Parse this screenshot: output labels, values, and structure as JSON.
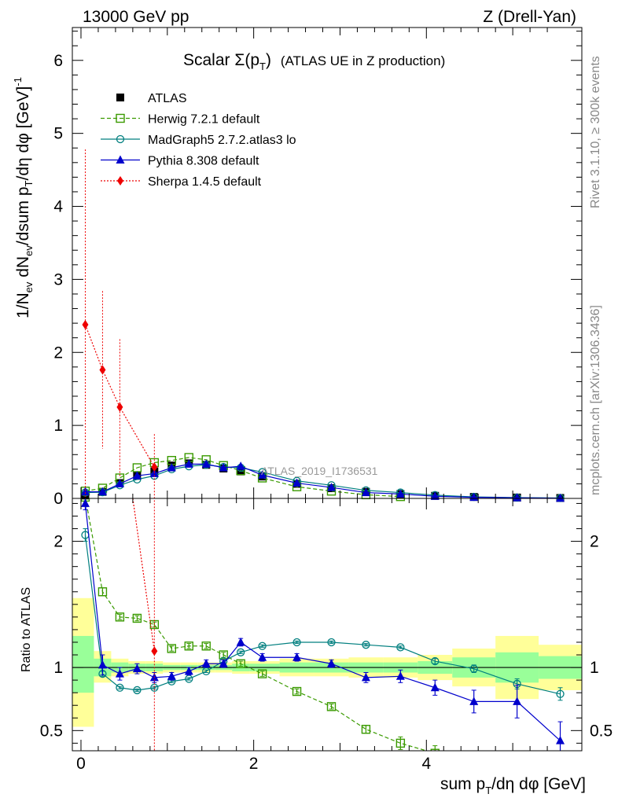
{
  "header": {
    "left": "13000 GeV pp",
    "right": "Z (Drell-Yan)"
  },
  "side_labels": {
    "rivet": "Rivet 3.1.10, ≥ 300k events",
    "mcplots": "mcplots.cern.ch [arXiv:1306.3436]"
  },
  "colors": {
    "atlas": "#000000",
    "herwig": "#3a9a00",
    "madgraph": "#007f7f",
    "pythia": "#0000cc",
    "sherpa": "#ee0000",
    "band_yellow": "#ffff99",
    "band_green": "#99ff99"
  },
  "chart_data": [
    {
      "type": "scatter",
      "title_main": "Scalar Σ(p",
      "title_sub": "T",
      "title_close": ")",
      "title_extra": "(ATLAS UE in Z production)",
      "watermark": "ATLAS_2019_I1736531",
      "ylabel": "1/N_ev dN_ev/dsum p_T/dη dφ [GeV]^-1",
      "ylabel_parts": {
        "a": "1/N",
        "b": "ev",
        "c": " dN",
        "d": "ev",
        "e": "/dsum p",
        "f": "T",
        "g": "/dη dφ  [GeV]",
        "h": "-1"
      },
      "xlim": [
        -0.1,
        5.8
      ],
      "ylim": [
        0,
        6.45
      ],
      "yticks": [
        0,
        1,
        2,
        3,
        4,
        5,
        6
      ],
      "ytick_labels": [
        "0",
        "1",
        "2",
        "3",
        "4",
        "5",
        "6"
      ],
      "x": [
        0.05,
        0.25,
        0.45,
        0.65,
        0.85,
        1.05,
        1.25,
        1.45,
        1.65,
        1.85,
        2.1,
        2.5,
        2.9,
        3.3,
        3.7,
        4.1,
        4.55,
        5.05,
        5.55
      ],
      "legend": [
        "ATLAS",
        "Herwig 7.2.1 default",
        "MadGraph5 2.7.2.atlas3 lo",
        "Pythia 8.308 default",
        "Sherpa 1.4.5 default"
      ],
      "series": [
        {
          "name": "ATLAS",
          "key": "atlas",
          "marker": "square-filled",
          "values": [
            0.04,
            0.09,
            0.21,
            0.31,
            0.37,
            0.45,
            0.48,
            0.46,
            0.41,
            0.37,
            0.3,
            0.2,
            0.14,
            0.09,
            0.06,
            0.035,
            0.02,
            0.012,
            0.006
          ]
        },
        {
          "name": "Herwig 7.2.1 default",
          "key": "herwig",
          "marker": "square-open",
          "dash": "5,3",
          "values": [
            0.1,
            0.14,
            0.28,
            0.42,
            0.49,
            0.52,
            0.56,
            0.53,
            0.45,
            0.38,
            0.28,
            0.16,
            0.1,
            0.05,
            0.025
          ]
        },
        {
          "name": "MadGraph5 2.7.2.atlas3 lo",
          "key": "madgraph",
          "marker": "circle-open",
          "values": [
            0.08,
            0.085,
            0.18,
            0.26,
            0.31,
            0.4,
            0.44,
            0.46,
            0.43,
            0.42,
            0.36,
            0.24,
            0.18,
            0.11,
            0.08,
            0.045,
            0.02,
            0.011,
            0.005
          ]
        },
        {
          "name": "Pythia 8.308 default",
          "key": "pythia",
          "marker": "triangle-filled",
          "values": [
            0.09,
            0.09,
            0.2,
            0.31,
            0.34,
            0.42,
            0.47,
            0.47,
            0.42,
            0.44,
            0.32,
            0.21,
            0.15,
            0.08,
            0.06,
            0.03,
            0.015,
            0.009,
            0.0025
          ]
        },
        {
          "name": "Sherpa 1.4.5 default",
          "key": "sherpa",
          "marker": "diamond-filled",
          "dash": "2,2",
          "x_override": [
            0.05,
            0.25,
            0.45,
            0.85
          ],
          "values": [
            2.38,
            1.76,
            1.25,
            0.43
          ],
          "err_up": [
            4.78,
            2.84,
            2.18,
            0.88
          ],
          "err_down": [
            0.0,
            0.68,
            0.3,
            0.0
          ]
        }
      ]
    },
    {
      "type": "line",
      "ylabel": "Ratio to ATLAS",
      "xlabel_parts": {
        "a": "sum p",
        "b": "T",
        "c": "/dη dφ [GeV]"
      },
      "xlim": [
        -0.1,
        5.8
      ],
      "ylim": [
        0.34,
        2.34
      ],
      "yticks": [
        0.5,
        1,
        2
      ],
      "ytick_labels": [
        "0.5",
        "1",
        "2"
      ],
      "xticks": [
        0,
        2,
        4
      ],
      "xtick_labels": [
        "0",
        "2",
        "4"
      ],
      "bands": {
        "edges": [
          -0.1,
          0.15,
          0.35,
          0.55,
          0.75,
          0.95,
          1.15,
          1.35,
          1.55,
          1.75,
          1.95,
          2.3,
          2.7,
          3.1,
          3.5,
          3.9,
          4.3,
          4.8,
          5.3,
          5.8
        ],
        "yellow_lo": [
          0.53,
          0.88,
          0.93,
          0.95,
          0.95,
          0.96,
          0.96,
          0.96,
          0.96,
          0.95,
          0.95,
          0.93,
          0.93,
          0.92,
          0.92,
          0.9,
          0.85,
          0.75,
          0.82
        ],
        "yellow_hi": [
          1.55,
          1.13,
          1.07,
          1.05,
          1.05,
          1.04,
          1.04,
          1.04,
          1.04,
          1.05,
          1.05,
          1.07,
          1.07,
          1.08,
          1.08,
          1.1,
          1.15,
          1.25,
          1.18
        ],
        "green_lo": [
          0.8,
          0.93,
          0.96,
          0.97,
          0.97,
          0.98,
          0.98,
          0.98,
          0.98,
          0.97,
          0.97,
          0.96,
          0.96,
          0.96,
          0.96,
          0.95,
          0.92,
          0.88,
          0.91
        ],
        "green_hi": [
          1.25,
          1.07,
          1.04,
          1.03,
          1.03,
          1.02,
          1.02,
          1.02,
          1.02,
          1.03,
          1.03,
          1.04,
          1.04,
          1.04,
          1.04,
          1.05,
          1.08,
          1.12,
          1.09
        ]
      },
      "series": [
        {
          "name": "Herwig 7.2.1 default",
          "key": "herwig",
          "marker": "square-open",
          "dash": "5,3",
          "values": [
            2.35,
            1.6,
            1.4,
            1.39,
            1.34,
            1.15,
            1.17,
            1.17,
            1.1,
            1.03,
            0.95,
            0.81,
            0.69,
            0.51,
            0.4,
            0.32
          ],
          "errors": [
            0.05,
            0.03,
            0.02,
            0.02,
            0.02,
            0.02,
            0.02,
            0.02,
            0.02,
            0.02,
            0.02,
            0.02,
            0.02,
            0.03,
            0.05,
            0.06
          ]
        },
        {
          "name": "MadGraph5 2.7.2.atlas3 lo",
          "key": "madgraph",
          "marker": "circle-open",
          "values": [
            2.05,
            0.95,
            0.84,
            0.82,
            0.84,
            0.89,
            0.91,
            0.97,
            1.05,
            1.12,
            1.17,
            1.2,
            1.2,
            1.18,
            1.16,
            1.05,
            0.99,
            0.87,
            0.79
          ],
          "errors": [
            0.05,
            0.02,
            0.01,
            0.01,
            0.01,
            0.01,
            0.01,
            0.01,
            0.01,
            0.01,
            0.01,
            0.01,
            0.01,
            0.01,
            0.01,
            0.02,
            0.03,
            0.04,
            0.05
          ]
        },
        {
          "name": "Pythia 8.308 default",
          "key": "pythia",
          "marker": "triangle-filled",
          "values": [
            2.3,
            1.02,
            0.95,
            0.99,
            0.92,
            0.93,
            0.97,
            1.03,
            1.03,
            1.2,
            1.08,
            1.08,
            1.03,
            0.92,
            0.93,
            0.84,
            0.73,
            0.73,
            0.42
          ],
          "errors": [
            0.05,
            0.08,
            0.05,
            0.04,
            0.04,
            0.03,
            0.03,
            0.03,
            0.03,
            0.03,
            0.03,
            0.03,
            0.03,
            0.04,
            0.05,
            0.06,
            0.09,
            0.13,
            0.15
          ]
        },
        {
          "name": "Sherpa 1.4.5 default",
          "key": "sherpa",
          "marker": "diamond-filled",
          "dash": "2,2",
          "x_override": [
            0.85
          ],
          "values": [
            1.13
          ],
          "err_up": [
            2.45
          ],
          "err_down": [
            0.34
          ],
          "line_from": [
            0.6,
            2.34
          ]
        }
      ]
    }
  ]
}
